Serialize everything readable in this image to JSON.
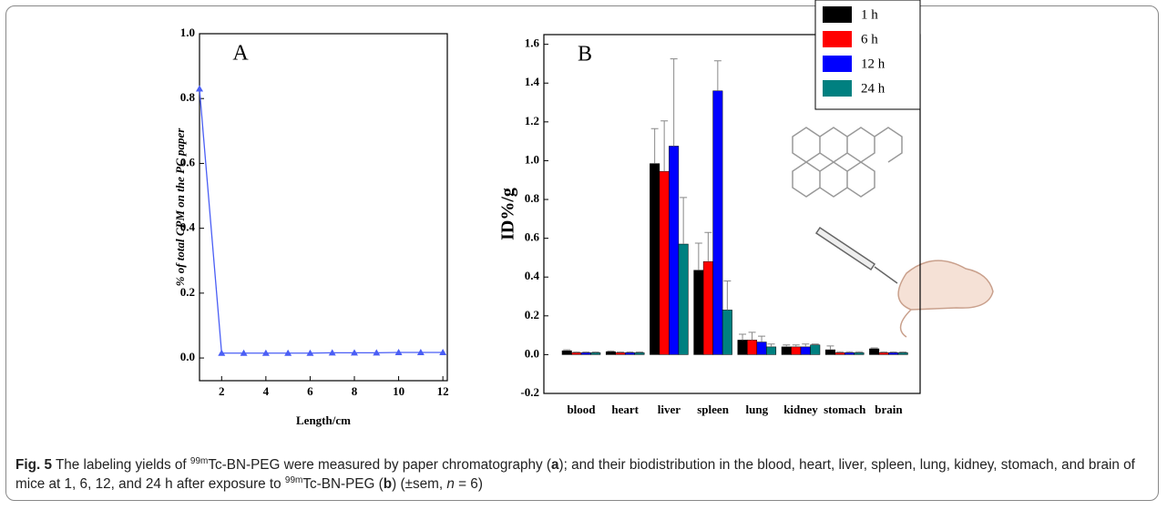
{
  "chart_data": [
    {
      "type": "line",
      "label": "A",
      "ylabel": "% of total CPM on the PC paper",
      "xlabel": "Length/cm",
      "x": [
        1,
        2,
        3,
        4,
        5,
        6,
        7,
        8,
        9,
        10,
        11,
        12
      ],
      "values": [
        0.83,
        0.015,
        0.015,
        0.015,
        0.015,
        0.015,
        0.016,
        0.016,
        0.016,
        0.017,
        0.017,
        0.017
      ],
      "color": "#4a5ef5",
      "marker": "triangle",
      "xlim": [
        1,
        12.2
      ],
      "xticks": [
        2,
        4,
        6,
        8,
        10,
        12
      ],
      "ylim": [
        -0.07,
        1.0
      ],
      "yticks": [
        {
          "value": 0,
          "label": "0.0"
        },
        0.2,
        0.4,
        0.6,
        0.8,
        {
          "value": 1,
          "label": "1.0"
        }
      ]
    },
    {
      "type": "bar",
      "label": "B",
      "ylabel": "ID%/g",
      "legend": "top-right",
      "categories": [
        "blood",
        "heart",
        "liver",
        "spleen",
        "lung",
        "kidney",
        "stomach",
        "brain"
      ],
      "series": [
        {
          "name": "1 h",
          "color": "#000000",
          "values": [
            0.02,
            0.015,
            0.985,
            0.435,
            0.075,
            0.04,
            0.025,
            0.03
          ],
          "errors": [
            0.005,
            0.004,
            0.18,
            0.14,
            0.03,
            0.01,
            0.02,
            0.005
          ]
        },
        {
          "name": "6 h",
          "color": "#ff0000",
          "values": [
            0.01,
            0.01,
            0.945,
            0.48,
            0.075,
            0.04,
            0.01,
            0.01
          ],
          "errors": [
            0.004,
            0.004,
            0.26,
            0.15,
            0.04,
            0.01,
            0.005,
            0.004
          ]
        },
        {
          "name": "12 h",
          "color": "#0000ff",
          "values": [
            0.01,
            0.01,
            1.075,
            1.36,
            0.065,
            0.04,
            0.01,
            0.01
          ],
          "errors": [
            0.004,
            0.004,
            0.45,
            0.155,
            0.03,
            0.015,
            0.005,
            0.004
          ]
        },
        {
          "name": "24 h",
          "color": "#008080",
          "values": [
            0.01,
            0.01,
            0.57,
            0.23,
            0.04,
            0.05,
            0.01,
            0.01
          ],
          "errors": [
            0.004,
            0.004,
            0.24,
            0.15,
            0.015,
            0.005,
            0.005,
            0.004
          ]
        }
      ],
      "ylim": [
        -0.2,
        1.65
      ],
      "yticks": [
        -0.2,
        {
          "value": 0,
          "label": "0.0"
        },
        0.2,
        0.4,
        0.6,
        0.8,
        {
          "value": 1,
          "label": "1.0"
        },
        1.2,
        1.4,
        1.6
      ]
    }
  ],
  "caption": {
    "label": "Fig. 5",
    "parts": [
      "The labeling yields of ",
      "99m",
      "Tc-BN-PEG were measured by paper chromatography (",
      "a",
      "); and their biodistribution in the blood, heart, liver, spleen, lung, kidney, stomach, and brain of mice at 1, 6, 12, and 24 h after exposure to ",
      "99m",
      "Tc-BN-PEG (",
      "b",
      ") (±sem, ",
      "n",
      " = 6)"
    ]
  }
}
